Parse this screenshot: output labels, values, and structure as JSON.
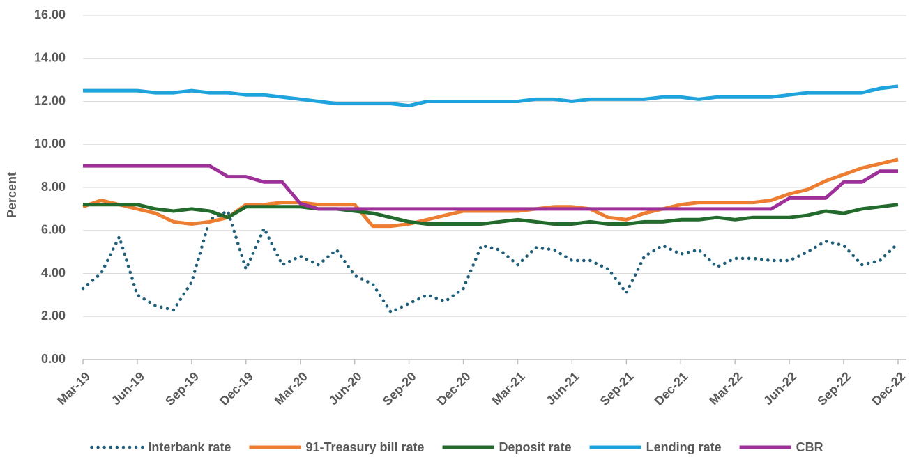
{
  "chart_data": {
    "type": "line",
    "y_label": "Percent",
    "categories": [
      "Mar-19",
      null,
      null,
      "Jun-19",
      null,
      null,
      "Sep-19",
      null,
      null,
      "Dec-19",
      null,
      null,
      "Mar-20",
      null,
      null,
      "Jun-20",
      null,
      null,
      "Sep-20",
      null,
      null,
      "Dec-20",
      null,
      null,
      "Mar-21",
      null,
      null,
      "Jun-21",
      null,
      null,
      "Sep-21",
      null,
      null,
      "Dec-21",
      null,
      null,
      "Mar-22",
      null,
      null,
      "Jun-22",
      null,
      null,
      "Sep-22",
      null,
      null,
      "Dec-22"
    ],
    "series": [
      {
        "name": "Interbank rate",
        "color": "#1f5f7a",
        "dotted": true,
        "values": [
          3.3,
          4.0,
          5.7,
          3.0,
          2.5,
          2.3,
          3.6,
          6.5,
          6.9,
          4.2,
          6.1,
          4.4,
          4.8,
          4.4,
          5.1,
          3.9,
          3.5,
          2.2,
          2.6,
          3.0,
          2.7,
          3.3,
          5.3,
          5.1,
          4.4,
          5.2,
          5.1,
          4.6,
          4.6,
          4.2,
          3.1,
          4.8,
          5.3,
          4.9,
          5.1,
          4.3,
          4.7,
          4.7,
          4.6,
          4.6,
          5.0,
          5.5,
          5.3,
          4.4,
          4.6,
          5.4
        ]
      },
      {
        "name": "91-Treasury bill rate",
        "color": "#ed7d31",
        "values": [
          7.1,
          7.4,
          7.2,
          7.0,
          6.8,
          6.4,
          6.3,
          6.4,
          6.6,
          7.2,
          7.2,
          7.3,
          7.3,
          7.2,
          7.2,
          7.2,
          6.2,
          6.2,
          6.3,
          6.5,
          6.7,
          6.9,
          6.9,
          6.9,
          6.9,
          7.0,
          7.1,
          7.1,
          7.0,
          6.6,
          6.5,
          6.8,
          7.0,
          7.2,
          7.3,
          7.3,
          7.3,
          7.3,
          7.4,
          7.7,
          7.9,
          8.3,
          8.6,
          8.9,
          9.1,
          9.3
        ]
      },
      {
        "name": "Deposit rate",
        "color": "#236b2c",
        "values": [
          7.2,
          7.2,
          7.2,
          7.2,
          7.0,
          6.9,
          7.0,
          6.9,
          6.6,
          7.1,
          7.1,
          7.1,
          7.1,
          7.0,
          7.0,
          6.9,
          6.8,
          6.6,
          6.4,
          6.3,
          6.3,
          6.3,
          6.3,
          6.4,
          6.5,
          6.4,
          6.3,
          6.3,
          6.4,
          6.3,
          6.3,
          6.4,
          6.4,
          6.5,
          6.5,
          6.6,
          6.5,
          6.6,
          6.6,
          6.6,
          6.7,
          6.9,
          6.8,
          7.0,
          7.1,
          7.2
        ]
      },
      {
        "name": "Lending rate",
        "color": "#1fa3dc",
        "values": [
          12.5,
          12.5,
          12.5,
          12.5,
          12.4,
          12.4,
          12.5,
          12.4,
          12.4,
          12.3,
          12.3,
          12.2,
          12.1,
          12.0,
          11.9,
          11.9,
          11.9,
          11.9,
          11.8,
          12.0,
          12.0,
          12.0,
          12.0,
          12.0,
          12.0,
          12.1,
          12.1,
          12.0,
          12.1,
          12.1,
          12.1,
          12.1,
          12.2,
          12.2,
          12.1,
          12.2,
          12.2,
          12.2,
          12.2,
          12.3,
          12.4,
          12.4,
          12.4,
          12.4,
          12.6,
          12.7
        ]
      },
      {
        "name": "CBR",
        "color": "#9e3199",
        "values": [
          9.0,
          9.0,
          9.0,
          9.0,
          9.0,
          9.0,
          9.0,
          9.0,
          8.5,
          8.5,
          8.25,
          8.25,
          7.25,
          7.0,
          7.0,
          7.0,
          7.0,
          7.0,
          7.0,
          7.0,
          7.0,
          7.0,
          7.0,
          7.0,
          7.0,
          7.0,
          7.0,
          7.0,
          7.0,
          7.0,
          7.0,
          7.0,
          7.0,
          7.0,
          7.0,
          7.0,
          7.0,
          7.0,
          7.0,
          7.5,
          7.5,
          7.5,
          8.25,
          8.25,
          8.75,
          8.75
        ]
      }
    ],
    "ylim": [
      0,
      16
    ],
    "yticks": [
      {
        "value": 0,
        "label": "0.00"
      },
      {
        "value": 2,
        "label": "2.00"
      },
      {
        "value": 4,
        "label": "4.00"
      },
      {
        "value": 6,
        "label": "6.00"
      },
      {
        "value": 8,
        "label": "8.00"
      },
      {
        "value": 10,
        "label": "10.00"
      },
      {
        "value": 12,
        "label": "12.00"
      },
      {
        "value": 14,
        "label": "14.00"
      },
      {
        "value": 16,
        "label": "16.00"
      }
    ],
    "grid": true,
    "legend": "bottom"
  }
}
